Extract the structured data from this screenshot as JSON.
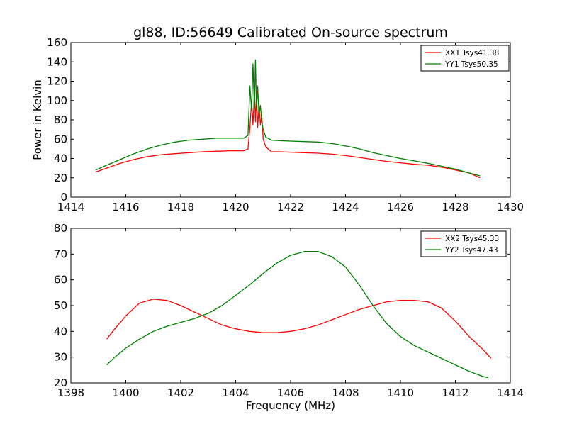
{
  "title": "gl88, ID:56649 Calibrated On-source spectrum",
  "colors": {
    "xx": "#ff0000",
    "yy": "#008000",
    "axis": "#000000"
  },
  "chart_data": [
    {
      "type": "line",
      "ylabel": "Power in Kelvin",
      "xlabel": "",
      "xlim": [
        1414,
        1430
      ],
      "ylim": [
        0,
        160
      ],
      "xticks": [
        "1414",
        "1416",
        "1418",
        "1420",
        "1422",
        "1424",
        "1426",
        "1428",
        "1430"
      ],
      "yticks": [
        "0",
        "20",
        "40",
        "60",
        "80",
        "100",
        "120",
        "140",
        "160"
      ],
      "legend_position": "top-right",
      "grid": false,
      "series": [
        {
          "name": "XX1 Tsys41.38",
          "color": "#ff0000",
          "x": [
            1414.9,
            1415.3,
            1415.8,
            1416.3,
            1416.8,
            1417.3,
            1417.8,
            1418.3,
            1418.8,
            1419.3,
            1419.8,
            1420.3,
            1420.45,
            1420.52,
            1420.58,
            1420.63,
            1420.68,
            1420.72,
            1420.76,
            1420.8,
            1420.85,
            1420.9,
            1420.95,
            1421.0,
            1421.1,
            1421.3,
            1421.6,
            1422.0,
            1422.5,
            1423.0,
            1423.5,
            1424.0,
            1424.5,
            1425.0,
            1425.5,
            1426.0,
            1426.5,
            1427.0,
            1427.5,
            1428.0,
            1428.5,
            1428.9
          ],
          "y": [
            26,
            30,
            35,
            39,
            42,
            44,
            45,
            46,
            47,
            47.5,
            48,
            48,
            50,
            72,
            100,
            75,
            108,
            78,
            110,
            72,
            95,
            75,
            85,
            60,
            52,
            47,
            47,
            46.5,
            46,
            45.5,
            44.5,
            43,
            41,
            39,
            37,
            35.5,
            34,
            33,
            31,
            28,
            25,
            20
          ]
        },
        {
          "name": "YY1 Tsys50.35",
          "color": "#008000",
          "x": [
            1414.9,
            1415.3,
            1415.8,
            1416.3,
            1416.8,
            1417.3,
            1417.8,
            1418.3,
            1418.8,
            1419.3,
            1419.8,
            1420.3,
            1420.45,
            1420.52,
            1420.58,
            1420.63,
            1420.68,
            1420.72,
            1420.76,
            1420.8,
            1420.85,
            1420.9,
            1420.95,
            1421.0,
            1421.1,
            1421.3,
            1421.6,
            1422.0,
            1422.5,
            1423.0,
            1423.5,
            1424.0,
            1424.5,
            1425.0,
            1425.5,
            1426.0,
            1426.5,
            1427.0,
            1427.5,
            1428.0,
            1428.5,
            1428.9
          ],
          "y": [
            28,
            33,
            39,
            45,
            50,
            54,
            57,
            59,
            60,
            61,
            61,
            61,
            64,
            115,
            90,
            138,
            92,
            142,
            90,
            115,
            85,
            95,
            78,
            70,
            62,
            59,
            58.5,
            58,
            57.5,
            57,
            55.5,
            53,
            50,
            46,
            43,
            40,
            37.5,
            35,
            32,
            29,
            25,
            22
          ]
        }
      ]
    },
    {
      "type": "line",
      "ylabel": "",
      "xlabel": "Frequency (MHz)",
      "xlim": [
        1398,
        1414
      ],
      "ylim": [
        20,
        80
      ],
      "xticks": [
        "1398",
        "1400",
        "1402",
        "1404",
        "1406",
        "1408",
        "1410",
        "1412",
        "1414"
      ],
      "yticks": [
        "20",
        "30",
        "40",
        "50",
        "60",
        "70",
        "80"
      ],
      "legend_position": "top-right",
      "grid": false,
      "series": [
        {
          "name": "XX2 Tsys45.33",
          "color": "#ff0000",
          "x": [
            1399.3,
            1399.6,
            1400.0,
            1400.5,
            1401.0,
            1401.5,
            1402.0,
            1402.5,
            1403.0,
            1403.5,
            1404.0,
            1404.5,
            1405.0,
            1405.5,
            1406.0,
            1406.5,
            1407.0,
            1407.5,
            1408.0,
            1408.5,
            1409.0,
            1409.5,
            1410.0,
            1410.5,
            1411.0,
            1411.5,
            1412.0,
            1412.5,
            1413.0,
            1413.3
          ],
          "y": [
            37,
            41,
            46,
            51,
            52.5,
            52,
            50,
            47.5,
            45,
            42.5,
            41,
            40,
            39.5,
            39.5,
            40,
            41,
            42.5,
            44.5,
            46.5,
            48.5,
            50,
            51.5,
            52,
            52,
            51.5,
            49,
            44,
            38,
            33,
            29.5
          ]
        },
        {
          "name": "YY2 Tsys47.43",
          "color": "#008000",
          "x": [
            1399.3,
            1399.6,
            1400.0,
            1400.5,
            1401.0,
            1401.5,
            1402.0,
            1402.5,
            1403.0,
            1403.5,
            1404.0,
            1404.5,
            1405.0,
            1405.5,
            1406.0,
            1406.5,
            1407.0,
            1407.5,
            1408.0,
            1408.5,
            1409.0,
            1409.5,
            1410.0,
            1410.5,
            1411.0,
            1411.5,
            1412.0,
            1412.5,
            1413.0,
            1413.2
          ],
          "y": [
            27,
            30,
            33.5,
            37,
            40,
            42,
            43.5,
            45,
            47,
            50,
            54,
            58,
            62.5,
            66.5,
            69.5,
            71,
            71,
            69,
            65,
            58,
            50,
            43,
            38,
            34.5,
            32,
            29.5,
            27,
            24.5,
            22.5,
            22
          ]
        }
      ]
    }
  ]
}
